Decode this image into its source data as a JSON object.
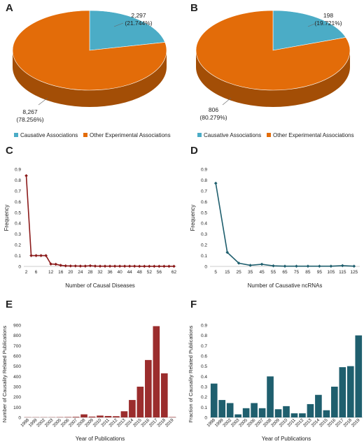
{
  "panels": [
    {
      "letter": "A",
      "chart_data": {
        "type": "pie",
        "slices": [
          {
            "label": "Causative Associations",
            "value": 2297,
            "value_text": "2,297",
            "pct_text": "(21.744%)",
            "color": "#4bacc6"
          },
          {
            "label": "Other Experimental Associations",
            "value": 8267,
            "value_text": "8,267",
            "pct_text": "(78.256%)",
            "color": "#e36c09"
          }
        ],
        "legend": "bottom"
      }
    },
    {
      "letter": "B",
      "chart_data": {
        "type": "pie",
        "slices": [
          {
            "label": "Causative  Associations",
            "value": 198,
            "value_text": "198",
            "pct_text": "(19.721%)",
            "color": "#4bacc6"
          },
          {
            "label": "Other Experimental Associations",
            "value": 806,
            "value_text": "806",
            "pct_text": "(80.279%)",
            "color": "#e36c09"
          }
        ],
        "legend": "bottom"
      }
    },
    {
      "letter": "C",
      "chart_data": {
        "type": "line",
        "xlabel": "Number of Causal  Diseases",
        "ylabel": "Frequency",
        "ylim": [
          0,
          0.9
        ],
        "yticks": [
          "0",
          "0.1",
          "0.2",
          "0.3",
          "0.4",
          "0.5",
          "0.6",
          "0.7",
          "0.8",
          "0.9"
        ],
        "categories": [
          "2",
          "4",
          "6",
          "8",
          "10",
          "12",
          "14",
          "16",
          "18",
          "20",
          "22",
          "24",
          "26",
          "28",
          "30",
          "32",
          "34",
          "36",
          "38",
          "40",
          "42",
          "44",
          "46",
          "48",
          "50",
          "52",
          "54",
          "56",
          "58",
          "60",
          "62"
        ],
        "tick_labels": [
          "2",
          "",
          "6",
          "",
          "",
          "12",
          "",
          "16",
          "",
          "20",
          "",
          "24",
          "",
          "28",
          "",
          "32",
          "",
          "36",
          "",
          "40",
          "",
          "44",
          "",
          "48",
          "",
          "52",
          "",
          "56",
          "",
          "",
          "62"
        ],
        "values": [
          0.84,
          0.1,
          0.1,
          0.1,
          0.1,
          0.022,
          0.02,
          0.01,
          0.005,
          0.004,
          0.004,
          0.003,
          0.003,
          0.006,
          0.003,
          0.002,
          0.002,
          0.002,
          0.002,
          0.002,
          0.002,
          0.002,
          0.002,
          0.001,
          0.001,
          0.001,
          0.001,
          0.001,
          0.001,
          0.001,
          0.001
        ],
        "color": "#8b1a1a"
      }
    },
    {
      "letter": "D",
      "chart_data": {
        "type": "line",
        "xlabel": "Number of Causative ncRNAs",
        "ylabel": "Frequency",
        "ylim": [
          0,
          0.9
        ],
        "yticks": [
          "0",
          "0.1",
          "0.2",
          "0.3",
          "0.4",
          "0.5",
          "0.6",
          "0.7",
          "0.8",
          "0.9"
        ],
        "categories": [
          "5",
          "15",
          "25",
          "35",
          "45",
          "55",
          "65",
          "75",
          "85",
          "95",
          "105",
          "115",
          "125"
        ],
        "tick_labels": [
          "5",
          "15",
          "25",
          "35",
          "45",
          "55",
          "65",
          "75",
          "85",
          "95",
          "105",
          "115",
          "125"
        ],
        "values": [
          0.77,
          0.13,
          0.03,
          0.01,
          0.02,
          0.005,
          0.002,
          0.002,
          0.002,
          0.002,
          0.002,
          0.007,
          0.002
        ],
        "color": "#1f5f6e"
      }
    },
    {
      "letter": "E",
      "chart_data": {
        "type": "bar",
        "xlabel": "Year of Publications",
        "ylabel": "Number of  Causality Related Publications",
        "ylim": [
          0,
          900
        ],
        "yticks": [
          "0",
          "100",
          "200",
          "300",
          "400",
          "500",
          "600",
          "700",
          "800",
          "900"
        ],
        "categories": [
          "1998",
          "1999",
          "2002",
          "2003",
          "2005",
          "2006",
          "2007",
          "2008",
          "2009",
          "2010",
          "2011",
          "2012",
          "2013",
          "2014",
          "2015",
          "2016",
          "2017",
          "2018",
          "2019"
        ],
        "values": [
          2,
          2,
          2,
          2,
          3,
          4,
          6,
          30,
          8,
          18,
          14,
          12,
          60,
          170,
          300,
          560,
          890,
          430,
          4
        ],
        "color": "#9b2d2d"
      }
    },
    {
      "letter": "F",
      "chart_data": {
        "type": "bar",
        "xlabel": "Year of Publications",
        "ylabel": "Fraction of Causality Related Publications",
        "ylim": [
          0,
          0.9
        ],
        "yticks": [
          "0",
          "0.1",
          "0.2",
          "0.3",
          "0.4",
          "0.5",
          "0.6",
          "0.7",
          "0.8",
          "0.9"
        ],
        "categories": [
          "1998",
          "1999",
          "2002",
          "2003",
          "2005",
          "2006",
          "2007",
          "2008",
          "2009",
          "2010",
          "2011",
          "2012",
          "2013",
          "2014",
          "2015",
          "2016",
          "2017",
          "2018",
          "2019"
        ],
        "values": [
          0.33,
          0.17,
          0.14,
          0.03,
          0.09,
          0.14,
          0.09,
          0.4,
          0.08,
          0.11,
          0.04,
          0.04,
          0.13,
          0.22,
          0.07,
          0.3,
          0.49,
          0.5,
          0.8
        ],
        "color": "#1f5f6e"
      }
    }
  ]
}
